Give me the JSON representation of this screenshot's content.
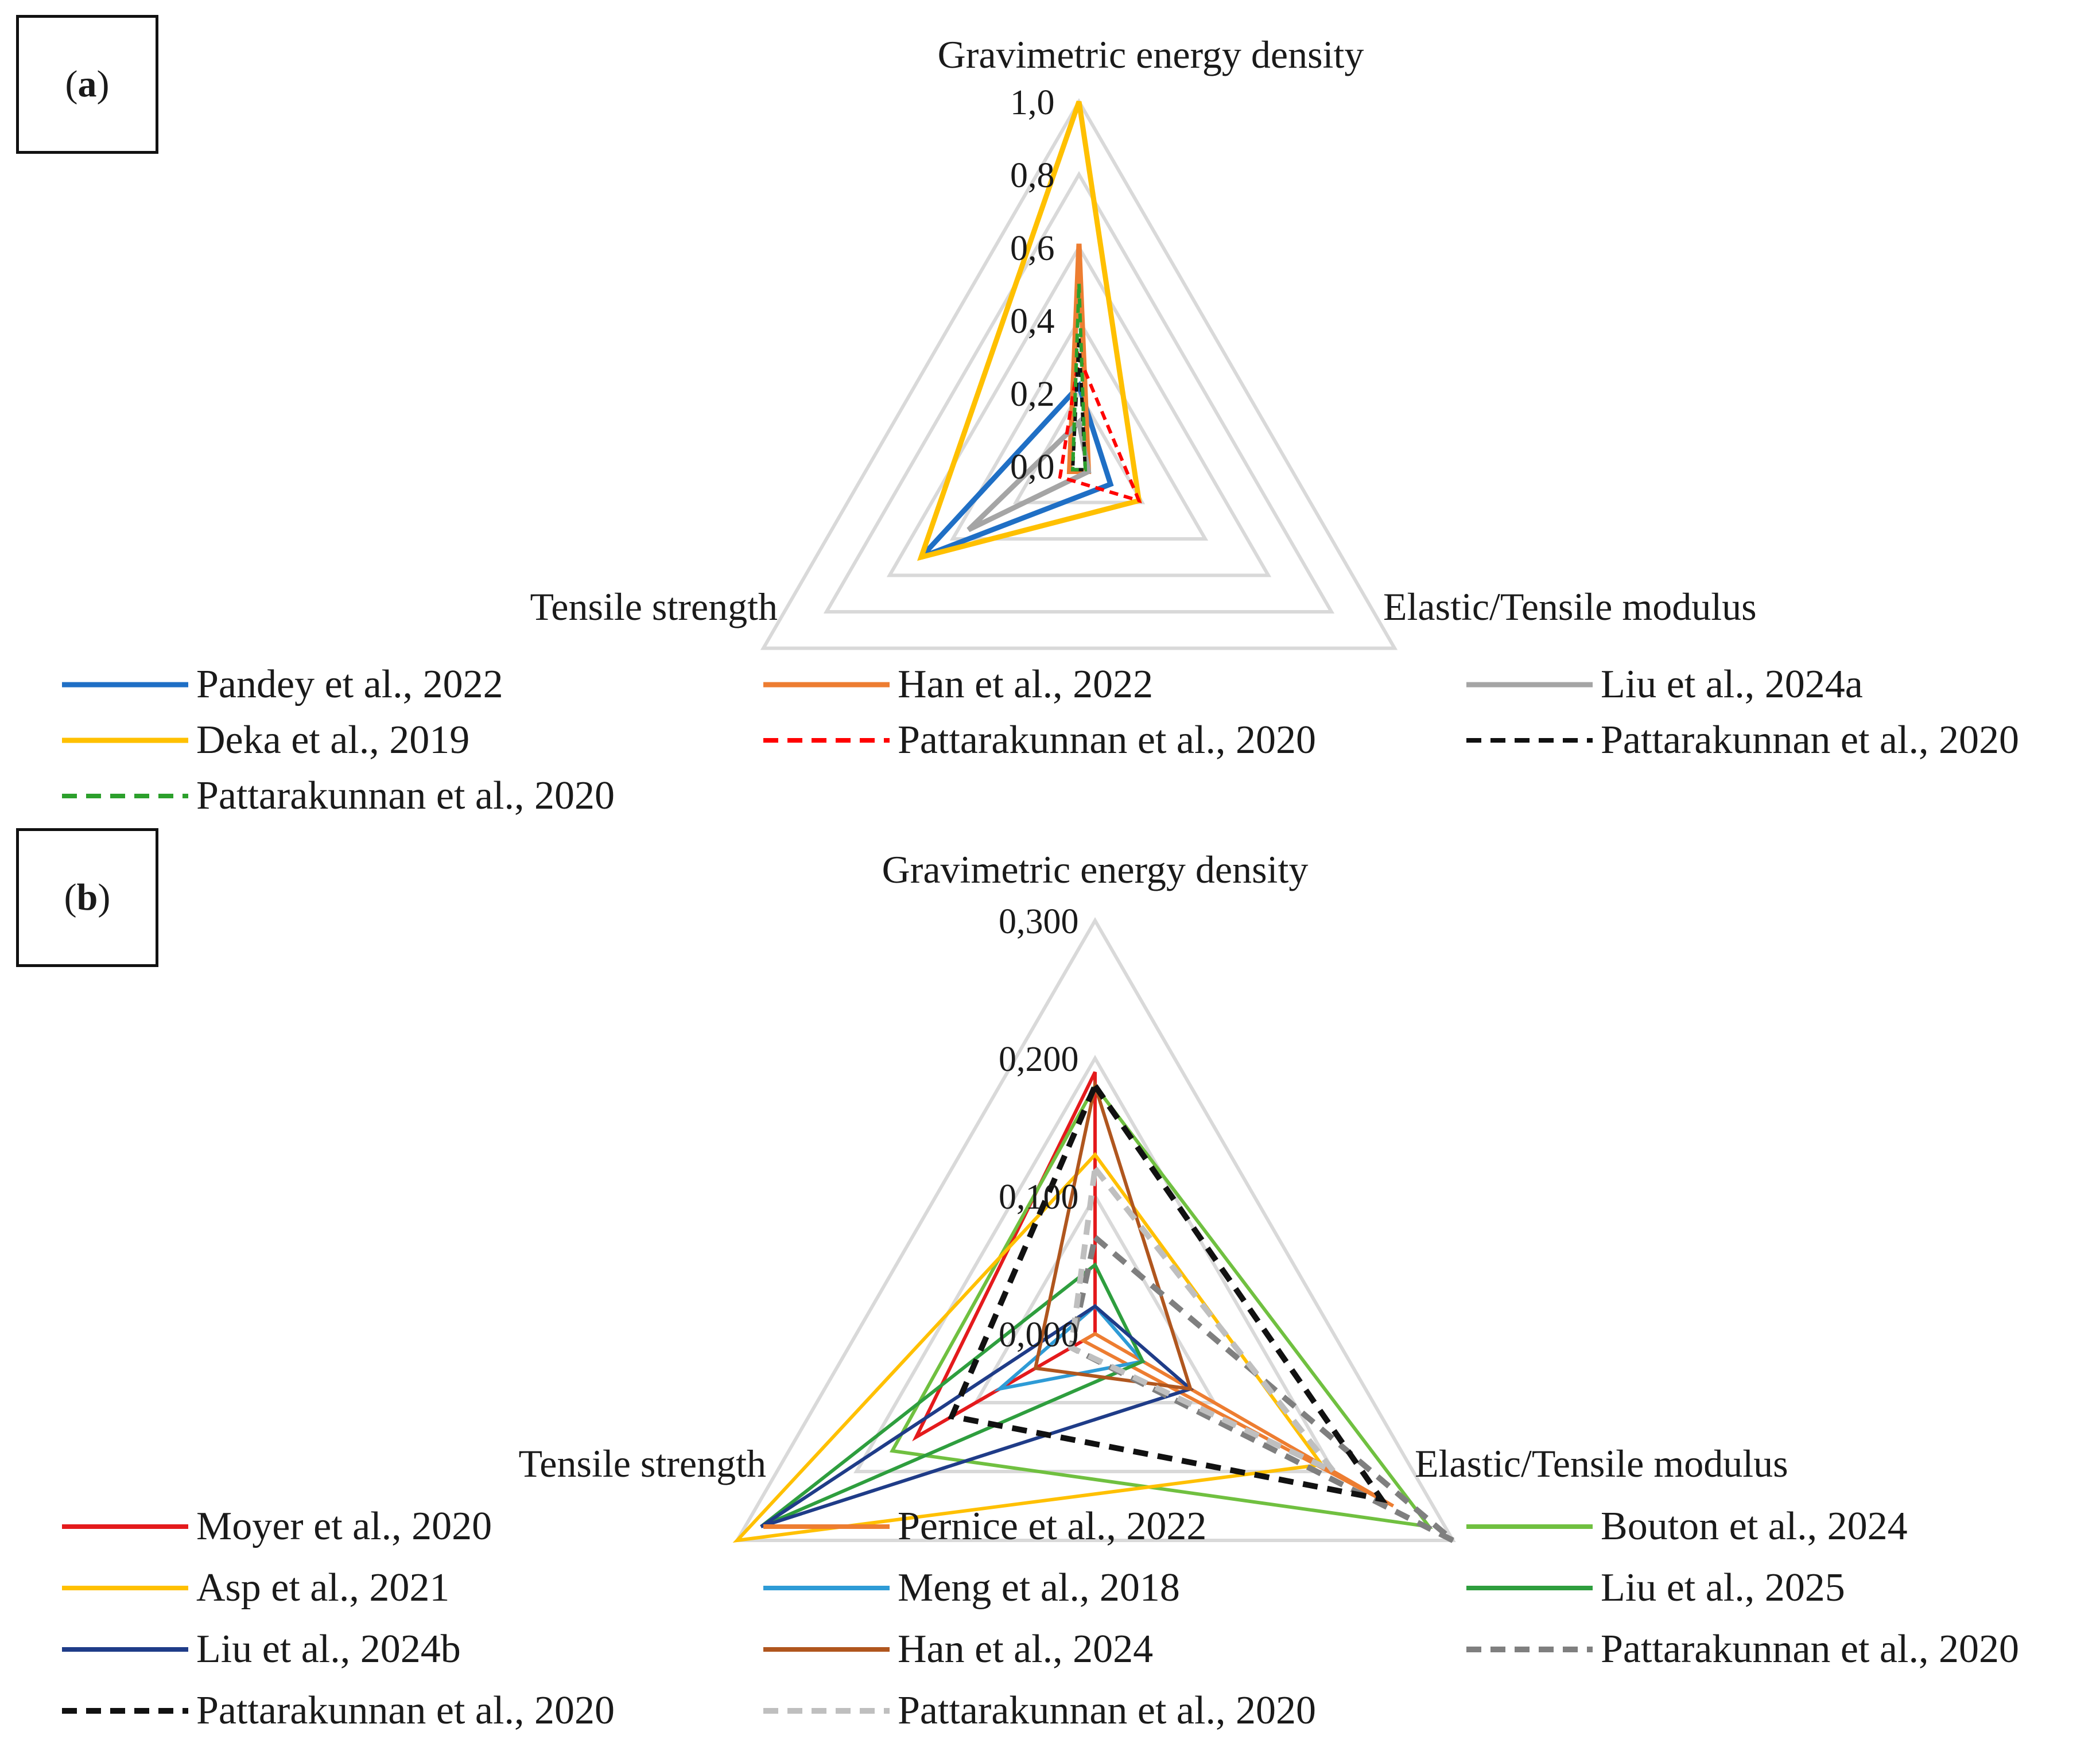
{
  "chart_data": [
    {
      "panel_label": "a",
      "type": "radar",
      "axes": [
        "Gravimetric energy density",
        "Elastic/Tensile modulus",
        "Tensile strength"
      ],
      "radial_range": [
        0.0,
        1.0
      ],
      "tick_labels": [
        "0,0",
        "0,2",
        "0,4",
        "0,6",
        "0,8",
        "1,0"
      ],
      "grid_levels": [
        0.2,
        0.4,
        0.6,
        0.8,
        1.0
      ],
      "series": [
        {
          "name": "Pandey et al., 2022",
          "color": "#1f6fc5",
          "dash": "solid",
          "width": 9,
          "values": [
            0.22,
            0.1,
            0.5
          ]
        },
        {
          "name": "Han et al., 2022",
          "color": "#ed7d31",
          "dash": "solid",
          "width": 9,
          "values": [
            0.61,
            0.03,
            0.03
          ]
        },
        {
          "name": "Liu et al., 2024a",
          "color": "#a5a5a5",
          "dash": "solid",
          "width": 9,
          "values": [
            0.12,
            0.03,
            0.35
          ]
        },
        {
          "name": "Deka et al., 2019",
          "color": "#ffc000",
          "dash": "solid",
          "width": 9,
          "values": [
            1.0,
            0.19,
            0.5
          ]
        },
        {
          "name": "Pattarakunnan et al., 2020",
          "color": "#ff0000",
          "dash": "dashed",
          "width": 6,
          "values": [
            0.3,
            0.19,
            0.06
          ]
        },
        {
          "name": "Pattarakunnan et al., 2020",
          "color": "#111111",
          "dash": "dashed",
          "width": 6,
          "values": [
            0.35,
            0.02,
            0.02
          ]
        },
        {
          "name": "Pattarakunnan et al., 2020",
          "color": "#2ca02c",
          "dash": "dashed",
          "width": 6,
          "values": [
            0.5,
            0.02,
            0.02
          ]
        }
      ]
    },
    {
      "panel_label": "b",
      "type": "radar",
      "axes": [
        "Gravimetric energy density",
        "Elastic/Tensile modulus",
        "Tensile strength"
      ],
      "radial_range": [
        0.0,
        0.3
      ],
      "tick_labels": [
        "0,000",
        "0,100",
        "0,200",
        "0,300"
      ],
      "grid_levels": [
        0.1,
        0.2,
        0.3
      ],
      "series": [
        {
          "name": "Moyer et al., 2020",
          "color": "#e41a1c",
          "dash": "solid",
          "width": 6,
          "values": [
            0.19,
            0.0,
            0.15
          ]
        },
        {
          "name": "Pernice et al., 2022",
          "color": "#ed7d31",
          "dash": "solid",
          "width": 6,
          "values": [
            0.0,
            0.25,
            0.01
          ]
        },
        {
          "name": "Bouton et al., 2024",
          "color": "#70c040",
          "dash": "solid",
          "width": 6,
          "values": [
            0.18,
            0.28,
            0.17
          ]
        },
        {
          "name": "Asp et al., 2021",
          "color": "#ffc000",
          "dash": "solid",
          "width": 6,
          "values": [
            0.13,
            0.19,
            0.3
          ]
        },
        {
          "name": "Meng et al., 2018",
          "color": "#2e9bd6",
          "dash": "solid",
          "width": 6,
          "values": [
            0.02,
            0.04,
            0.08
          ]
        },
        {
          "name": "Liu et al., 2025",
          "color": "#2e9e3e",
          "dash": "solid",
          "width": 6,
          "values": [
            0.05,
            0.04,
            0.28
          ]
        },
        {
          "name": "Liu et al., 2024b",
          "color": "#1f3c88",
          "dash": "solid",
          "width": 6,
          "values": [
            0.02,
            0.08,
            0.28
          ]
        },
        {
          "name": "Han et al., 2024",
          "color": "#b0561e",
          "dash": "solid",
          "width": 6,
          "values": [
            0.18,
            0.08,
            0.05
          ]
        },
        {
          "name": "Pattarakunnan et al., 2020",
          "color": "#7f7f7f",
          "dash": "dashed",
          "width": 10,
          "values": [
            0.07,
            0.3,
            0.02
          ]
        },
        {
          "name": "Pattarakunnan et al., 2020",
          "color": "#111111",
          "dash": "dashed",
          "width": 10,
          "values": [
            0.18,
            0.24,
            0.12
          ]
        },
        {
          "name": "Pattarakunnan et al., 2020",
          "color": "#bfbfbf",
          "dash": "dashed",
          "width": 10,
          "values": [
            0.12,
            0.2,
            0.02
          ]
        }
      ]
    }
  ]
}
